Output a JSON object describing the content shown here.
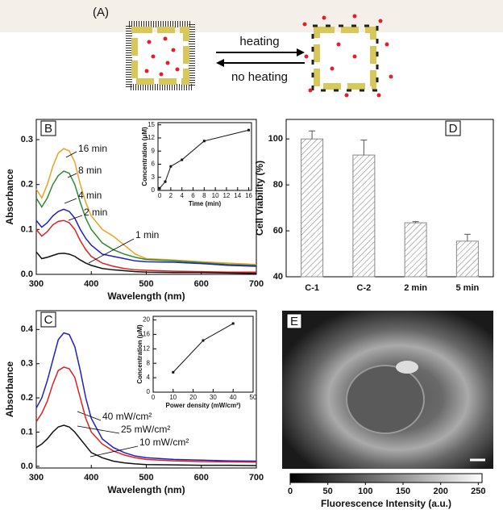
{
  "diagram": {
    "label": "(A)",
    "arrow_top": "heating",
    "arrow_bottom": "no heating"
  },
  "chart_data": [
    {
      "type": "line",
      "panel": "B",
      "xlabel": "Wavelength (nm)",
      "ylabel": "Absorbance",
      "xlim": [
        300,
        700
      ],
      "ylim": [
        0,
        0.345
      ],
      "xticks": [
        300,
        400,
        500,
        600,
        700
      ],
      "yticks": [
        {
          "value": 0,
          "label": "0.0"
        },
        0.1,
        0.2,
        0.3
      ],
      "x": [
        300,
        310,
        320,
        330,
        340,
        350,
        360,
        370,
        380,
        390,
        400,
        420,
        440,
        460,
        480,
        500,
        550,
        600,
        650,
        700
      ],
      "series": [
        {
          "name": "16 min",
          "color": "#f0a020",
          "values": [
            0.19,
            0.17,
            0.2,
            0.24,
            0.27,
            0.28,
            0.275,
            0.25,
            0.2,
            0.16,
            0.13,
            0.1,
            0.085,
            0.065,
            0.045,
            0.035,
            0.032,
            0.028,
            0.025,
            0.022
          ]
        },
        {
          "name": "8 min",
          "color": "#2e8b2e",
          "values": [
            0.17,
            0.15,
            0.17,
            0.2,
            0.22,
            0.23,
            0.225,
            0.2,
            0.16,
            0.125,
            0.1,
            0.07,
            0.055,
            0.045,
            0.038,
            0.033,
            0.03,
            0.026,
            0.022,
            0.02
          ]
        },
        {
          "name": "4 min",
          "color": "#2020c0",
          "values": [
            0.12,
            0.105,
            0.115,
            0.13,
            0.14,
            0.145,
            0.14,
            0.125,
            0.1,
            0.08,
            0.065,
            0.045,
            0.04,
            0.035,
            0.03,
            0.028,
            0.027,
            0.024,
            0.02,
            0.018
          ]
        },
        {
          "name": "2 min",
          "color": "#e02020",
          "values": [
            0.1,
            0.085,
            0.095,
            0.11,
            0.118,
            0.12,
            0.115,
            0.1,
            0.075,
            0.055,
            0.04,
            0.025,
            0.018,
            0.013,
            0.01,
            0.009,
            0.007,
            0.006,
            0.005,
            0.005
          ]
        },
        {
          "name": "1 min",
          "color": "#111111",
          "values": [
            0.05,
            0.035,
            0.038,
            0.042,
            0.046,
            0.047,
            0.045,
            0.04,
            0.032,
            0.025,
            0.02,
            0.013,
            0.01,
            0.008,
            0.006,
            0.005,
            0.004,
            0.004,
            0.003,
            0.002
          ]
        }
      ]
    },
    {
      "type": "line",
      "markers": true,
      "xlabel": "Time (min)",
      "ylabel": "Concentration (μM)",
      "xlim": [
        -0.3,
        16.5
      ],
      "ylim": [
        0,
        15.5
      ],
      "xticks": [
        0,
        2,
        4,
        6,
        8,
        10,
        12,
        14,
        16
      ],
      "yticks": [
        0,
        3,
        6,
        9,
        12,
        15
      ],
      "x": [
        0,
        1,
        2,
        4,
        8,
        16
      ],
      "series": [
        {
          "color": "#111111",
          "values": [
            0.5,
            2,
            5.5,
            7,
            11.3,
            13.8
          ]
        }
      ]
    },
    {
      "type": "line",
      "panel": "C",
      "xlabel": "Wavelength (nm)",
      "ylabel": "Absorbance",
      "xlim": [
        300,
        700
      ],
      "ylim": [
        -0.005,
        0.455
      ],
      "xticks": [
        300,
        400,
        500,
        600,
        700
      ],
      "yticks": [
        {
          "value": 0,
          "label": "0.0"
        },
        0.1,
        0.2,
        0.3,
        0.4
      ],
      "x": [
        300,
        310,
        320,
        330,
        340,
        350,
        360,
        370,
        380,
        390,
        400,
        420,
        440,
        460,
        480,
        500,
        550,
        600,
        650,
        700
      ],
      "series": [
        {
          "name": "40 mW/cm²",
          "color": "#2020c0",
          "values": [
            0.17,
            0.2,
            0.25,
            0.31,
            0.37,
            0.39,
            0.385,
            0.35,
            0.28,
            0.2,
            0.14,
            0.08,
            0.055,
            0.04,
            0.03,
            0.025,
            0.02,
            0.018,
            0.016,
            0.015
          ]
        },
        {
          "name": "25 mW/cm²",
          "color": "#e02020",
          "values": [
            0.13,
            0.155,
            0.19,
            0.24,
            0.28,
            0.29,
            0.285,
            0.26,
            0.2,
            0.14,
            0.1,
            0.065,
            0.045,
            0.033,
            0.025,
            0.02,
            0.016,
            0.014,
            0.013,
            0.012
          ]
        },
        {
          "name": "10 mW/cm²",
          "color": "#111111",
          "values": [
            0.055,
            0.065,
            0.08,
            0.1,
            0.115,
            0.12,
            0.115,
            0.1,
            0.08,
            0.06,
            0.04,
            0.025,
            0.015,
            0.01,
            0.007,
            0.005,
            0.004,
            0.003,
            0.003,
            0.002
          ]
        }
      ]
    },
    {
      "type": "line",
      "markers": true,
      "xlabel": "Power density (mW/cm²)",
      "ylabel": "Concentration (μM)",
      "xlim": [
        0,
        50
      ],
      "ylim": [
        0,
        21
      ],
      "xticks": [
        0,
        10,
        20,
        30,
        40,
        50
      ],
      "yticks": [
        0,
        4,
        8,
        12,
        16,
        20
      ],
      "x": [
        10,
        25,
        40
      ],
      "series": [
        {
          "color": "#111111",
          "values": [
            5.5,
            14.3,
            19
          ]
        }
      ]
    },
    {
      "type": "bar",
      "panel": "D",
      "ylabel": "Cell Viability (%)",
      "ylim": [
        40,
        108.5
      ],
      "yticks": [
        40,
        60,
        80,
        100
      ],
      "categories": [
        "C-1",
        "C-2",
        "2 min",
        "5 min"
      ],
      "values": [
        100,
        93,
        63.5,
        55.5
      ],
      "errors": [
        3.5,
        6.5,
        0.5,
        3
      ],
      "color": "#888888"
    },
    {
      "type": "colorbar",
      "panel": "E",
      "xlabel": "Fluorescence Intensity (a.u.)",
      "xlim": [
        0,
        255
      ],
      "xticks": [
        0,
        50,
        100,
        150,
        200,
        250
      ]
    }
  ]
}
